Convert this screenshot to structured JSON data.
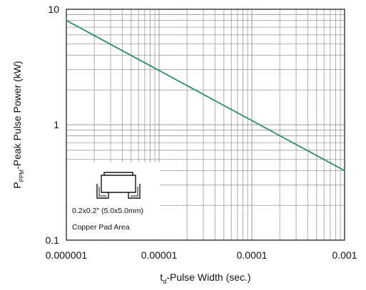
{
  "chart_data": {
    "type": "line",
    "x_scale": "log",
    "y_scale": "log",
    "xlim": [
      1e-06,
      0.001
    ],
    "ylim": [
      0.1,
      10
    ],
    "grid": true,
    "x_ticks": [
      "0.000001",
      "0.00001",
      "0.0001",
      "0.001"
    ],
    "y_ticks": [
      "0.1",
      "1",
      "10"
    ],
    "xlabel": {
      "main": "t",
      "sub": "d",
      "rest": "-Pulse Width (sec.)"
    },
    "ylabel": {
      "main": "P",
      "sub": "PPM",
      "rest": "-Peak Pulse Power (kW)"
    },
    "series": [
      {
        "color": "#2e8b6e",
        "x": [
          1e-06,
          0.001
        ],
        "y": [
          8.0,
          0.4
        ]
      }
    ],
    "inset": {
      "line1": "0.2x0.2\" (5.0x5.0mm)",
      "line2": "Copper Pad Area",
      "icon": "surface-mount-package-icon"
    }
  }
}
